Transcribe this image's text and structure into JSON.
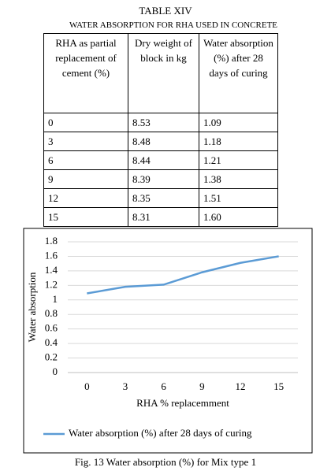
{
  "table": {
    "title": "TABLE XIV",
    "subtitle": "WATER ABSORPTION FOR RHA USED IN CONCRETE",
    "headers": [
      "RHA as partial replacement of cement (%)",
      "Dry weight of block in kg",
      "Water absorption (%) after 28 days of curing"
    ],
    "rows": [
      [
        "0",
        "8.53",
        "1.09"
      ],
      [
        "3",
        "8.48",
        "1.18"
      ],
      [
        "6",
        "8.44",
        "1.21"
      ],
      [
        "9",
        "8.39",
        "1.38"
      ],
      [
        "12",
        "8.35",
        "1.51"
      ],
      [
        "15",
        "8.31",
        "1.60"
      ]
    ]
  },
  "chart_data": {
    "type": "line",
    "x_label": "RHA % replacemment",
    "y_label": "Water absorption",
    "categories": [
      "0",
      "3",
      "6",
      "9",
      "12",
      "15"
    ],
    "series": [
      {
        "name": "Water absorption (%) after 28 days of curing",
        "color": "#5b9bd5",
        "values": [
          1.09,
          1.18,
          1.21,
          1.38,
          1.51,
          1.6
        ]
      }
    ],
    "ylim": [
      0,
      1.8
    ],
    "yticks": [
      0,
      0.2,
      0.4,
      0.6,
      0.8,
      1,
      1.2,
      1.4,
      1.6,
      1.8
    ],
    "grid": true,
    "legend": "bottom"
  },
  "caption": "Fig. 13 Water absorption (%) for Mix type 1"
}
